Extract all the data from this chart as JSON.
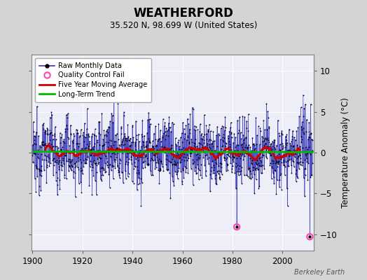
{
  "title": "WEATHERFORD",
  "subtitle": "35.520 N, 98.699 W (United States)",
  "ylabel": "Temperature Anomaly (°C)",
  "watermark": "Berkeley Earth",
  "year_start": 1900,
  "year_end": 2012,
  "ylim": [
    -12,
    12
  ],
  "yticks": [
    -10,
    -5,
    0,
    5,
    10
  ],
  "xticks": [
    1900,
    1920,
    1940,
    1960,
    1980,
    2000
  ],
  "bg_color": "#d4d4d4",
  "plot_bg_color": "#eeeef8",
  "line_color": "#3333bb",
  "dot_color": "#000000",
  "ma_color": "#cc0000",
  "trend_color": "#00bb00",
  "qc_color": "#ff44aa",
  "seed": 12345,
  "n_months": 1344,
  "qc_idx_1": 980,
  "qc_val_1": -9.1,
  "qc_idx_2": 1330,
  "qc_val_2": -10.3
}
